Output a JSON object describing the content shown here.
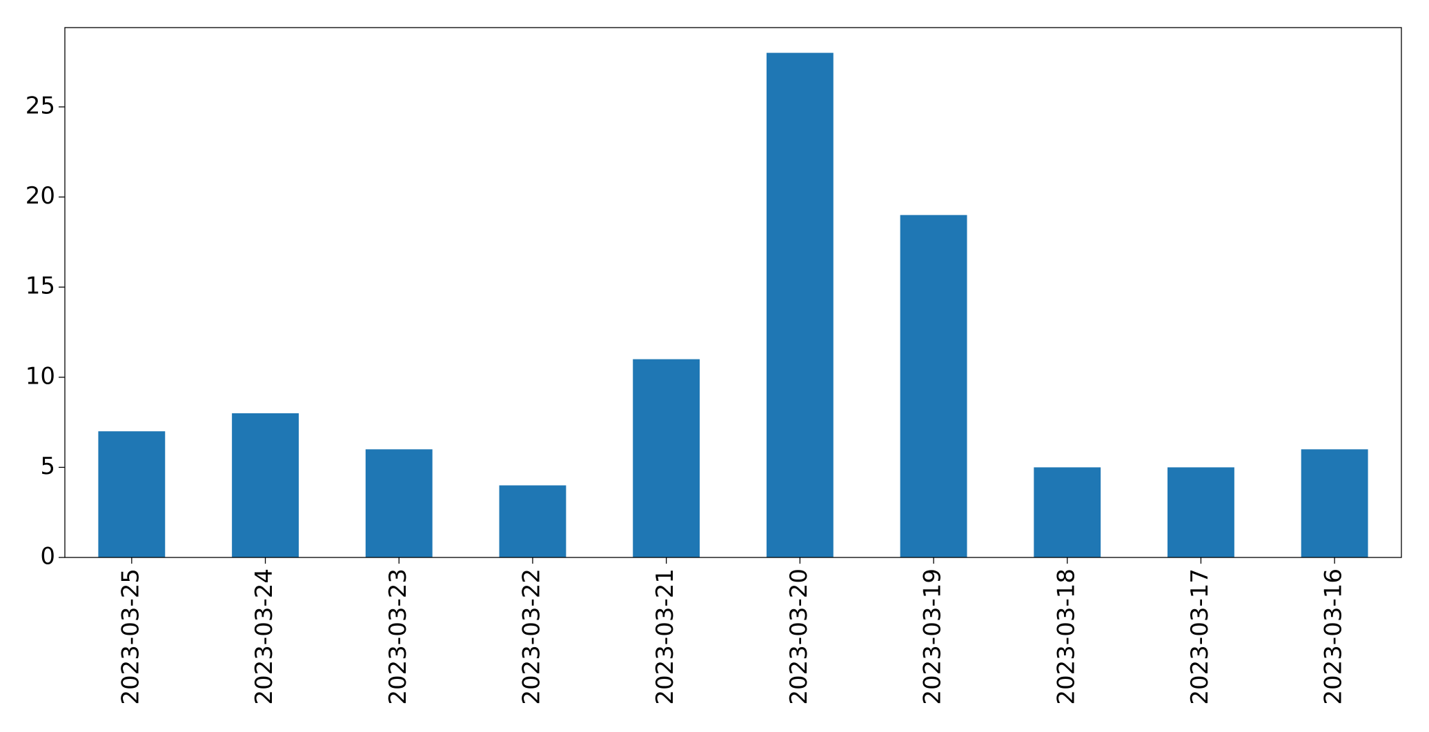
{
  "chart_data": {
    "type": "bar",
    "categories": [
      "2023-03-25",
      "2023-03-24",
      "2023-03-23",
      "2023-03-22",
      "2023-03-21",
      "2023-03-20",
      "2023-03-19",
      "2023-03-18",
      "2023-03-17",
      "2023-03-16"
    ],
    "values": [
      7,
      8,
      6,
      4,
      11,
      28,
      19,
      5,
      5,
      6
    ],
    "color": "#1f77b4",
    "ylim": [
      0,
      29.4
    ],
    "yticks": [
      0,
      5,
      10,
      15,
      20,
      25
    ],
    "grid": false
  }
}
